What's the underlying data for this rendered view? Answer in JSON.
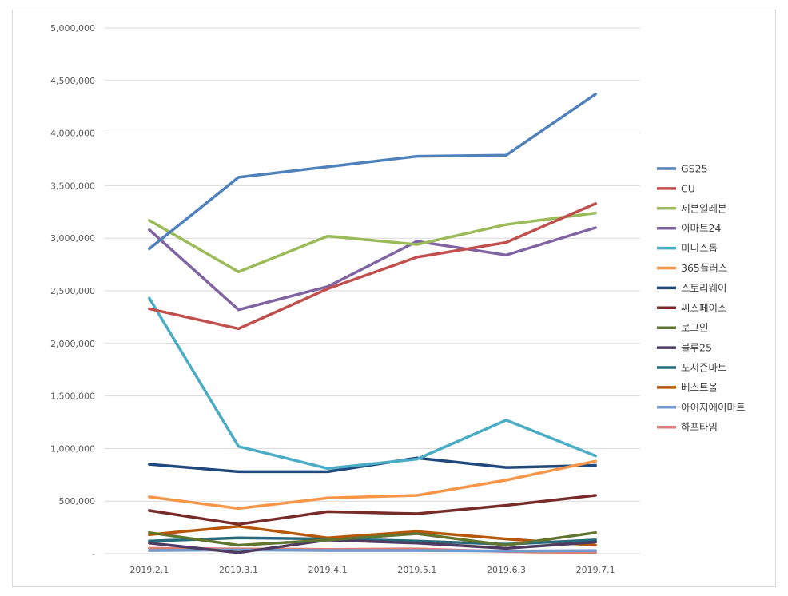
{
  "chart_data": {
    "type": "line",
    "title": "",
    "xlabel": "",
    "ylabel": "",
    "categories": [
      "2019.2.1",
      "2019.3.1",
      "2019.4.1",
      "2019.5.1",
      "2019.6.3",
      "2019.7.1"
    ],
    "ylim": [
      0,
      5000000
    ],
    "yticks": [
      "-",
      "500,000",
      "1,000,000",
      "1,500,000",
      "2,000,000",
      "2,500,000",
      "3,000,000",
      "3,500,000",
      "4,000,000",
      "4,500,000",
      "5,000,000"
    ],
    "grid": true,
    "legend_position": "right",
    "series": [
      {
        "name": "GS25",
        "color": "#4f81bd",
        "values": [
          2900000,
          3580000,
          3680000,
          3780000,
          3790000,
          4370000
        ]
      },
      {
        "name": "CU",
        "color": "#c0504d",
        "values": [
          2330000,
          2140000,
          2520000,
          2820000,
          2960000,
          3330000
        ]
      },
      {
        "name": "세븐일레븐",
        "color": "#9bbb59",
        "values": [
          3170000,
          2680000,
          3020000,
          2940000,
          3130000,
          3240000
        ]
      },
      {
        "name": "이마트24",
        "color": "#8064a2",
        "values": [
          3080000,
          2320000,
          2540000,
          2970000,
          2840000,
          3100000
        ]
      },
      {
        "name": "미니스톱",
        "color": "#4bacc6",
        "values": [
          2430000,
          1020000,
          810000,
          900000,
          1270000,
          930000
        ]
      },
      {
        "name": "365플러스",
        "color": "#f79646",
        "values": [
          540000,
          430000,
          530000,
          555000,
          700000,
          880000
        ]
      },
      {
        "name": "스토리웨이",
        "color": "#1f497d",
        "values": [
          850000,
          780000,
          780000,
          910000,
          820000,
          840000
        ]
      },
      {
        "name": "씨스페이스",
        "color": "#772c2a",
        "values": [
          410000,
          280000,
          400000,
          380000,
          460000,
          555000
        ]
      },
      {
        "name": "로그인",
        "color": "#5f7530",
        "values": [
          200000,
          80000,
          130000,
          190000,
          80000,
          200000
        ]
      },
      {
        "name": "블루25",
        "color": "#4d3b62",
        "values": [
          100000,
          10000,
          130000,
          100000,
          50000,
          110000
        ]
      },
      {
        "name": "포시즌마트",
        "color": "#276a7c",
        "values": [
          120000,
          150000,
          140000,
          120000,
          90000,
          130000
        ]
      },
      {
        "name": "베스트올",
        "color": "#b65708",
        "values": [
          180000,
          260000,
          150000,
          210000,
          140000,
          80000
        ]
      },
      {
        "name": "아이지에이마트",
        "color": "#729aca",
        "values": [
          30000,
          35000,
          30000,
          30000,
          25000,
          30000
        ]
      },
      {
        "name": "하프타임",
        "color": "#d9807e",
        "values": [
          50000,
          45000,
          40000,
          45000,
          20000,
          10000
        ]
      }
    ]
  }
}
